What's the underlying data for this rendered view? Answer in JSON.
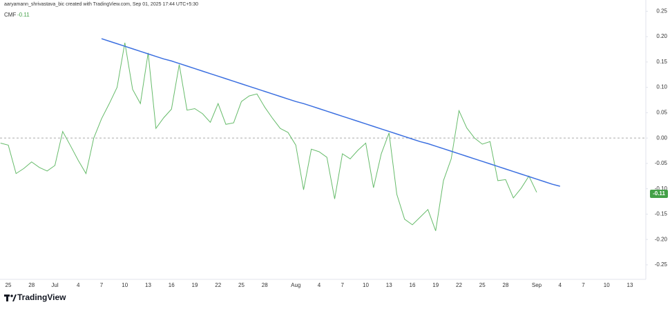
{
  "header": "aaryamann_shrivastava_bic created with TradingView.com, Sep 01, 2025 17:44 UTC+5:30",
  "footer_logo": "TradingView",
  "chart_data": {
    "type": "line",
    "indicator": "CMF",
    "last_value": -0.11,
    "zero_line": true,
    "grid": false,
    "ylim": [
      -0.28,
      0.26
    ],
    "yticks": [
      0.25,
      {
        "value": 0.2,
        "label": "0.20"
      },
      0.15,
      {
        "value": 0.1,
        "label": "0.10"
      },
      0.05,
      {
        "value": 0,
        "label": "0.00"
      },
      -0.05,
      {
        "value": -0.1,
        "label": "-0.10"
      },
      -0.15,
      {
        "value": -0.2,
        "label": "-0.20"
      },
      -0.25
    ],
    "categories": [
      null,
      "25",
      null,
      null,
      "28",
      null,
      null,
      "Jul",
      null,
      null,
      "4",
      null,
      null,
      "7",
      null,
      null,
      "10",
      null,
      null,
      "13",
      null,
      null,
      "16",
      null,
      null,
      "19",
      null,
      null,
      "22",
      null,
      null,
      "25",
      null,
      null,
      "28",
      null,
      null,
      null,
      "Aug",
      null,
      null,
      "4",
      null,
      null,
      "7",
      null,
      null,
      "10",
      null,
      null,
      "13",
      null,
      null,
      "16",
      null,
      null,
      "19",
      null,
      null,
      "22",
      null,
      null,
      "25",
      null,
      null,
      "28",
      null,
      null,
      null,
      "Sep",
      null,
      null,
      "4",
      null,
      null,
      "7",
      null,
      null,
      "10",
      null,
      null,
      "13",
      null,
      null
    ],
    "series": [
      {
        "name": "CMF",
        "color": "#66bb6a",
        "values": [
          -0.01,
          -0.014,
          -0.07,
          -0.06,
          -0.047,
          -0.058,
          -0.065,
          -0.054,
          0.013,
          -0.015,
          -0.044,
          -0.07,
          0.0,
          0.038,
          0.068,
          0.1,
          0.188,
          0.096,
          0.068,
          0.168,
          0.019,
          0.04,
          0.057,
          0.145,
          0.055,
          0.058,
          0.048,
          0.031,
          0.068,
          0.027,
          0.03,
          0.072,
          0.083,
          0.087,
          0.061,
          0.039,
          0.019,
          0.011,
          -0.014,
          -0.102,
          -0.022,
          -0.027,
          -0.038,
          -0.12,
          -0.031,
          -0.041,
          -0.024,
          -0.01,
          -0.098,
          -0.031,
          0.01,
          -0.111,
          -0.16,
          -0.171,
          -0.156,
          -0.141,
          -0.183,
          -0.084,
          -0.041,
          0.054,
          0.02,
          0.0,
          -0.012,
          -0.007,
          -0.084,
          -0.082,
          -0.118,
          -0.099,
          -0.075,
          -0.107,
          null,
          null,
          null,
          null,
          null,
          null,
          null,
          null,
          null,
          null,
          null,
          null,
          null,
          null
        ]
      },
      {
        "color": "#3b6fe0",
        "values": [
          null,
          null,
          null,
          null,
          null,
          null,
          null,
          null,
          null,
          null,
          null,
          null,
          null,
          0.196,
          0.191,
          0.186,
          0.181,
          0.176,
          0.171,
          0.166,
          0.161,
          0.156,
          0.152,
          0.147,
          0.142,
          0.137,
          0.132,
          0.127,
          0.122,
          0.117,
          0.112,
          0.107,
          0.102,
          0.097,
          0.092,
          0.087,
          0.082,
          0.077,
          0.072,
          0.068,
          0.063,
          0.058,
          0.053,
          0.048,
          0.043,
          0.038,
          0.033,
          0.028,
          0.023,
          0.018,
          0.013,
          0.008,
          0.003,
          -0.002,
          -0.007,
          -0.011,
          -0.016,
          -0.021,
          -0.026,
          -0.031,
          -0.036,
          -0.041,
          -0.046,
          -0.051,
          -0.056,
          -0.061,
          -0.066,
          -0.071,
          -0.076,
          -0.081,
          -0.086,
          -0.091,
          -0.095,
          null,
          null,
          null,
          null,
          null,
          null,
          null,
          null,
          null,
          null,
          null
        ]
      }
    ]
  }
}
